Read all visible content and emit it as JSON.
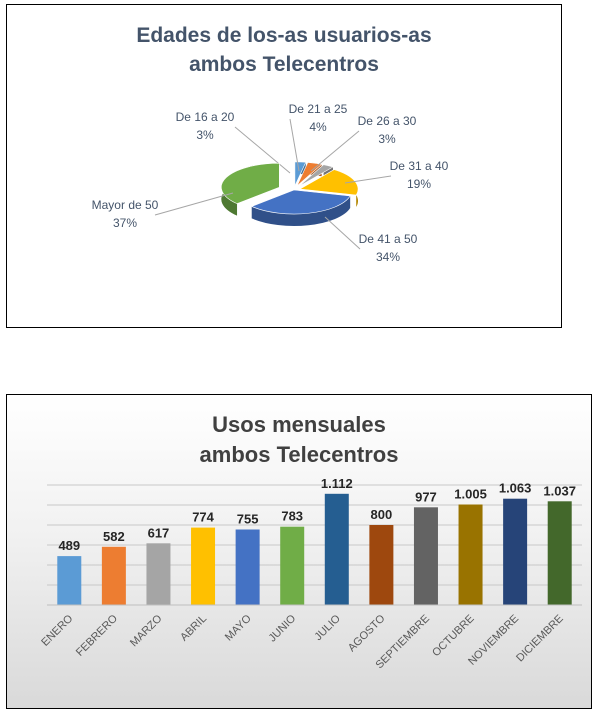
{
  "chart_data": [
    {
      "type": "pie",
      "title_line1": "Edades de los-as usuarios-as",
      "title_line2": "ambos Telecentros",
      "slices": [
        {
          "label": "De 16 a 20",
          "percent_label": "3%",
          "value": 3,
          "color": "#5b9bd5"
        },
        {
          "label": "De 21 a 25",
          "percent_label": "4%",
          "value": 4,
          "color": "#ed7d31"
        },
        {
          "label": "De 26 a 30",
          "percent_label": "3%",
          "value": 3,
          "color": "#a5a5a5"
        },
        {
          "label": "De 31 a 40",
          "percent_label": "19%",
          "value": 19,
          "color": "#ffc000"
        },
        {
          "label": "De 41 a 50",
          "percent_label": "34%",
          "value": 34,
          "color": "#4472c4"
        },
        {
          "label": "Mayor de 50",
          "percent_label": "37%",
          "value": 37,
          "color": "#70ad47"
        }
      ],
      "legend": "none"
    },
    {
      "type": "bar",
      "title_line1": "Usos mensuales",
      "title_line2": "ambos Telecentros",
      "categories": [
        "ENERO",
        "FEBRERO",
        "MARZO",
        "ABRIL",
        "MAYO",
        "JUNIO",
        "JULIO",
        "AGOSTO",
        "SEPTIEMBRE",
        "OCTUBRE",
        "NOVIEMBRE",
        "DICIEMBRE"
      ],
      "values": [
        489,
        582,
        617,
        774,
        755,
        783,
        1112,
        800,
        977,
        1005,
        1063,
        1037
      ],
      "value_labels": [
        "489",
        "582",
        "617",
        "774",
        "755",
        "783",
        "1.112",
        "800",
        "977",
        "1.005",
        "1.063",
        "1.037"
      ],
      "colors": [
        "#5b9bd5",
        "#ed7d31",
        "#a5a5a5",
        "#ffc000",
        "#4472c4",
        "#70ad47",
        "#255e91",
        "#9e480e",
        "#636363",
        "#997300",
        "#264478",
        "#43682b"
      ],
      "ylim": [
        0,
        1200
      ],
      "grid": true,
      "legend": "none"
    }
  ]
}
